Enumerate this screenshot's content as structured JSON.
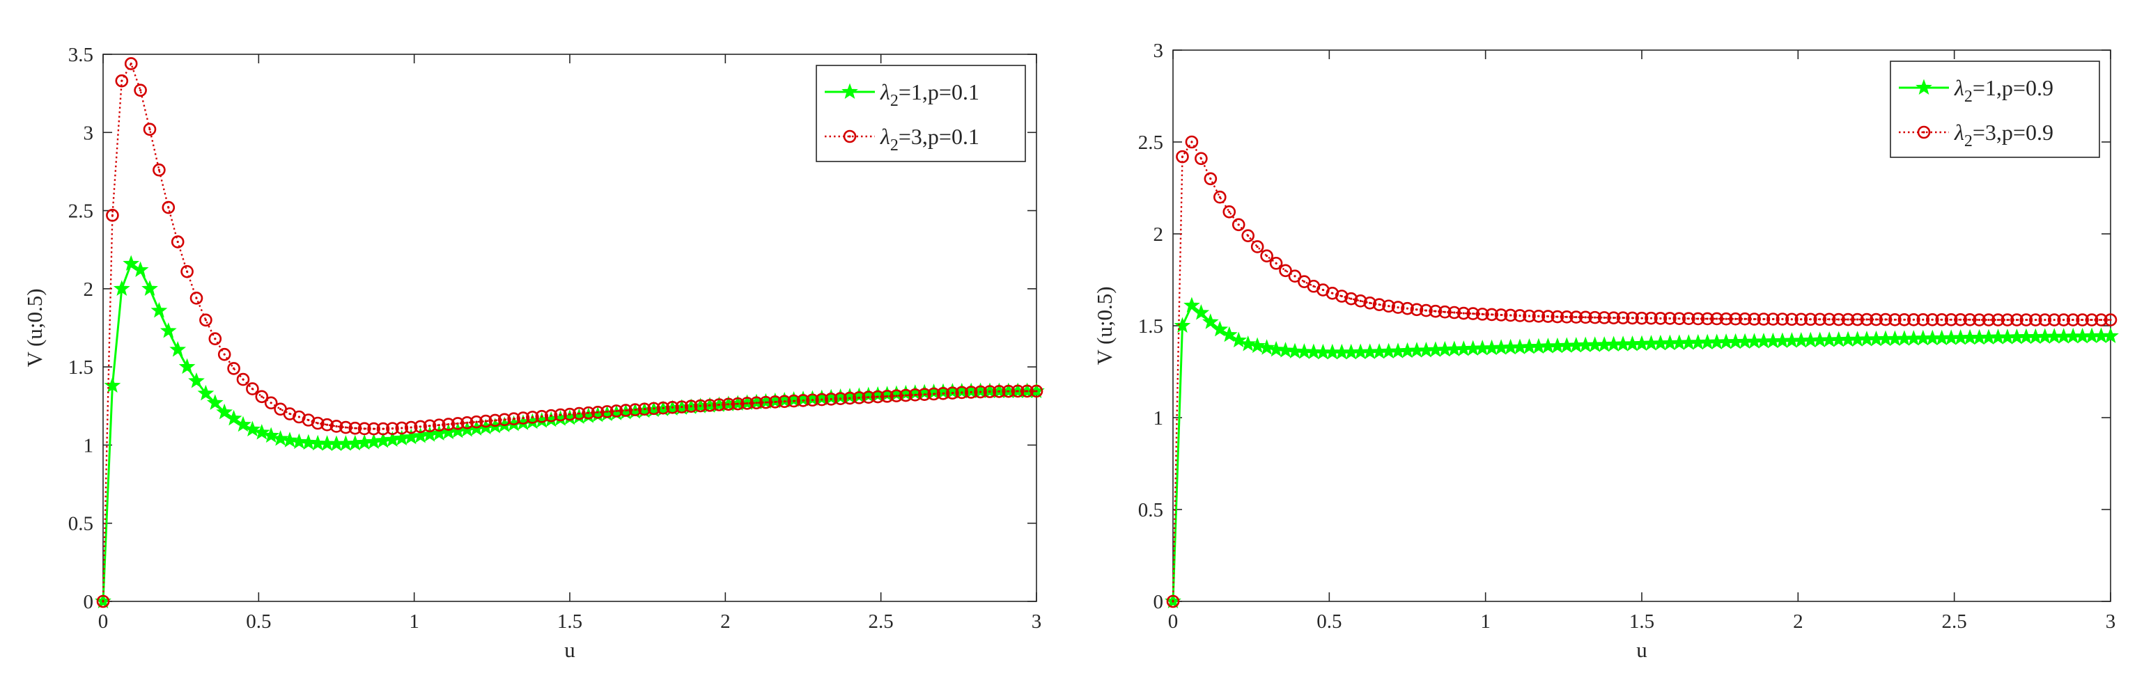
{
  "chart_data": [
    {
      "type": "line",
      "title": "",
      "xlabel": "u",
      "ylabel": "V (u;0.5)",
      "xlim": [
        0,
        3
      ],
      "ylim": [
        0,
        3.5
      ],
      "xticks": [
        0,
        0.5,
        1,
        1.5,
        2,
        2.5,
        3
      ],
      "xtick_labels": [
        "0",
        "0.5",
        "1",
        "1.5",
        "2",
        "2.5",
        "3"
      ],
      "yticks": [
        0,
        0.5,
        1,
        1.5,
        2,
        2.5,
        3,
        3.5
      ],
      "ytick_labels": [
        "0",
        "0.5",
        "1",
        "1.5",
        "2",
        "2.5",
        "3",
        "3.5"
      ],
      "grid": false,
      "legend_position": "top-right",
      "series": [
        {
          "name": "λ2=1,p=0.1",
          "legend_sym": "λ",
          "legend_sub": "2",
          "legend_rest": "=1,p=0.1",
          "color": "#00ff00",
          "line_style": "solid",
          "marker": "star",
          "x_start": 0,
          "x_step": 0.03,
          "values": [
            0,
            1.38,
            2.0,
            2.16,
            2.12,
            2.0,
            1.86,
            1.73,
            1.61,
            1.5,
            1.41,
            1.33,
            1.27,
            1.21,
            1.17,
            1.13,
            1.1,
            1.08,
            1.06,
            1.04,
            1.03,
            1.02,
            1.015,
            1.01,
            1.008,
            1.007,
            1.008,
            1.01,
            1.015,
            1.02,
            1.027,
            1.034,
            1.042,
            1.05,
            1.058,
            1.066,
            1.074,
            1.082,
            1.09,
            1.098,
            1.105,
            1.113,
            1.12,
            1.127,
            1.134,
            1.141,
            1.148,
            1.155,
            1.161,
            1.168,
            1.174,
            1.18,
            1.186,
            1.192,
            1.198,
            1.203,
            1.209,
            1.214,
            1.219,
            1.224,
            1.229,
            1.234,
            1.239,
            1.243,
            1.248,
            1.252,
            1.256,
            1.261,
            1.265,
            1.269,
            1.273,
            1.277,
            1.281,
            1.285,
            1.289,
            1.293,
            1.296,
            1.3,
            1.304,
            1.307,
            1.311,
            1.314,
            1.318,
            1.321,
            1.324,
            1.327,
            1.33,
            1.333,
            1.336,
            1.338,
            1.34,
            1.342,
            1.343,
            1.344,
            1.345,
            1.345,
            1.345,
            1.345,
            1.345,
            1.345,
            1.345
          ]
        },
        {
          "name": "λ2=3,p=0.1",
          "legend_sym": "λ",
          "legend_sub": "2",
          "legend_rest": "=3,p=0.1",
          "color": "#d40000",
          "line_style": "dotted",
          "marker": "circle",
          "x_start": 0,
          "x_step": 0.03,
          "values": [
            0,
            2.47,
            3.33,
            3.44,
            3.27,
            3.02,
            2.76,
            2.52,
            2.3,
            2.11,
            1.94,
            1.8,
            1.68,
            1.58,
            1.49,
            1.42,
            1.36,
            1.31,
            1.27,
            1.23,
            1.2,
            1.18,
            1.16,
            1.14,
            1.13,
            1.12,
            1.113,
            1.108,
            1.105,
            1.104,
            1.104,
            1.106,
            1.109,
            1.113,
            1.118,
            1.123,
            1.128,
            1.133,
            1.138,
            1.143,
            1.148,
            1.153,
            1.158,
            1.163,
            1.168,
            1.173,
            1.178,
            1.183,
            1.188,
            1.193,
            1.197,
            1.202,
            1.206,
            1.21,
            1.214,
            1.218,
            1.222,
            1.226,
            1.23,
            1.234,
            1.237,
            1.241,
            1.244,
            1.248,
            1.251,
            1.254,
            1.258,
            1.261,
            1.264,
            1.267,
            1.27,
            1.273,
            1.276,
            1.279,
            1.282,
            1.285,
            1.288,
            1.291,
            1.294,
            1.297,
            1.3,
            1.303,
            1.306,
            1.309,
            1.312,
            1.315,
            1.318,
            1.321,
            1.324,
            1.327,
            1.33,
            1.333,
            1.336,
            1.338,
            1.34,
            1.342,
            1.343,
            1.344,
            1.345,
            1.345,
            1.345
          ]
        }
      ]
    },
    {
      "type": "line",
      "title": "",
      "xlabel": "u",
      "ylabel": "V (u;0.5)",
      "xlim": [
        0,
        3
      ],
      "ylim": [
        0,
        3
      ],
      "xticks": [
        0,
        0.5,
        1,
        1.5,
        2,
        2.5,
        3
      ],
      "xtick_labels": [
        "0",
        "0.5",
        "1",
        "1.5",
        "2",
        "2.5",
        "3"
      ],
      "yticks": [
        0,
        0.5,
        1,
        1.5,
        2,
        2.5,
        3
      ],
      "ytick_labels": [
        "0",
        "0.5",
        "1",
        "1.5",
        "2",
        "2.5",
        "3"
      ],
      "grid": false,
      "legend_position": "top-right",
      "series": [
        {
          "name": "λ2=1,p=0.9",
          "legend_sym": "λ",
          "legend_sub": "2",
          "legend_rest": "=1,p=0.9",
          "color": "#00ff00",
          "line_style": "solid",
          "marker": "star",
          "x_start": 0,
          "x_step": 0.03,
          "values": [
            0,
            1.5,
            1.61,
            1.57,
            1.52,
            1.48,
            1.45,
            1.42,
            1.4,
            1.39,
            1.38,
            1.37,
            1.365,
            1.36,
            1.358,
            1.356,
            1.355,
            1.355,
            1.355,
            1.355,
            1.356,
            1.357,
            1.358,
            1.36,
            1.361,
            1.363,
            1.365,
            1.366,
            1.368,
            1.37,
            1.372,
            1.373,
            1.375,
            1.377,
            1.378,
            1.38,
            1.382,
            1.383,
            1.385,
            1.386,
            1.388,
            1.389,
            1.391,
            1.392,
            1.394,
            1.395,
            1.396,
            1.398,
            1.399,
            1.4,
            1.401,
            1.403,
            1.404,
            1.405,
            1.406,
            1.407,
            1.408,
            1.409,
            1.41,
            1.411,
            1.412,
            1.413,
            1.414,
            1.415,
            1.416,
            1.417,
            1.418,
            1.419,
            1.42,
            1.421,
            1.422,
            1.423,
            1.424,
            1.425,
            1.426,
            1.427,
            1.428,
            1.428,
            1.429,
            1.43,
            1.431,
            1.432,
            1.432,
            1.433,
            1.434,
            1.435,
            1.435,
            1.436,
            1.437,
            1.437,
            1.438,
            1.439,
            1.439,
            1.44,
            1.441,
            1.441,
            1.442,
            1.442,
            1.443,
            1.444,
            1.444
          ]
        },
        {
          "name": "λ2=3,p=0.9",
          "legend_sym": "λ",
          "legend_sub": "2",
          "legend_rest": "=3,p=0.9",
          "color": "#d40000",
          "line_style": "dotted",
          "marker": "circle",
          "x_start": 0,
          "x_step": 0.03,
          "values": [
            0,
            2.42,
            2.5,
            2.41,
            2.3,
            2.2,
            2.12,
            2.05,
            1.99,
            1.93,
            1.88,
            1.84,
            1.8,
            1.77,
            1.74,
            1.715,
            1.695,
            1.677,
            1.661,
            1.647,
            1.635,
            1.624,
            1.615,
            1.607,
            1.6,
            1.594,
            1.588,
            1.583,
            1.579,
            1.575,
            1.572,
            1.568,
            1.566,
            1.563,
            1.561,
            1.559,
            1.557,
            1.555,
            1.553,
            1.552,
            1.551,
            1.549,
            1.548,
            1.547,
            1.546,
            1.545,
            1.544,
            1.543,
            1.543,
            1.542,
            1.541,
            1.541,
            1.54,
            1.54,
            1.539,
            1.539,
            1.538,
            1.538,
            1.538,
            1.537,
            1.537,
            1.537,
            1.536,
            1.536,
            1.536,
            1.536,
            1.535,
            1.535,
            1.535,
            1.535,
            1.535,
            1.534,
            1.534,
            1.534,
            1.534,
            1.534,
            1.534,
            1.533,
            1.533,
            1.533,
            1.533,
            1.533,
            1.533,
            1.533,
            1.533,
            1.533,
            1.532,
            1.532,
            1.532,
            1.532,
            1.532,
            1.532,
            1.532,
            1.532,
            1.532,
            1.532,
            1.532,
            1.532,
            1.532,
            1.532,
            1.532
          ]
        }
      ]
    }
  ]
}
